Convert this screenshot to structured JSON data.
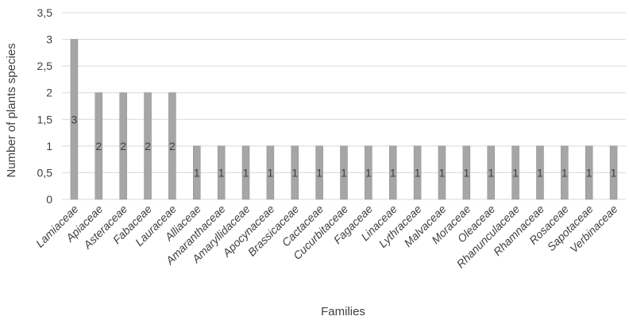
{
  "chart_data": {
    "type": "bar",
    "title": "",
    "xlabel": "Families",
    "ylabel": "Number of plants species",
    "ylim": [
      0,
      3.5
    ],
    "yticks": [
      "0",
      "0,5",
      "1",
      "1,5",
      "2",
      "2,5",
      "3",
      "3,5"
    ],
    "grid": true,
    "categories": [
      "Lamiaceae",
      "Apiaceae",
      "Asteraceae",
      "Fabaceae",
      "Lauraceae",
      "Alliaceae",
      "Amaranthaceae",
      "Amaryllidaceae",
      "Apocynaceae",
      "Brassicaceae",
      "Cactaceae",
      "Cucurbitaceae",
      "Fagaceae",
      "Linaceae",
      "Lythraceae",
      "Malvaceae",
      "Moraceae",
      "Oleaceae",
      "Rhanunculaceae",
      "Rhamnaceae",
      "Rosaceae",
      "Sapotaceae",
      "Verbinaceae"
    ],
    "values": [
      3,
      2,
      2,
      2,
      2,
      1,
      1,
      1,
      1,
      1,
      1,
      1,
      1,
      1,
      1,
      1,
      1,
      1,
      1,
      1,
      1,
      1,
      1
    ],
    "colors": {
      "bar": "#a6a6a6",
      "grid": "#d9d9d9",
      "text": "#404040"
    }
  }
}
